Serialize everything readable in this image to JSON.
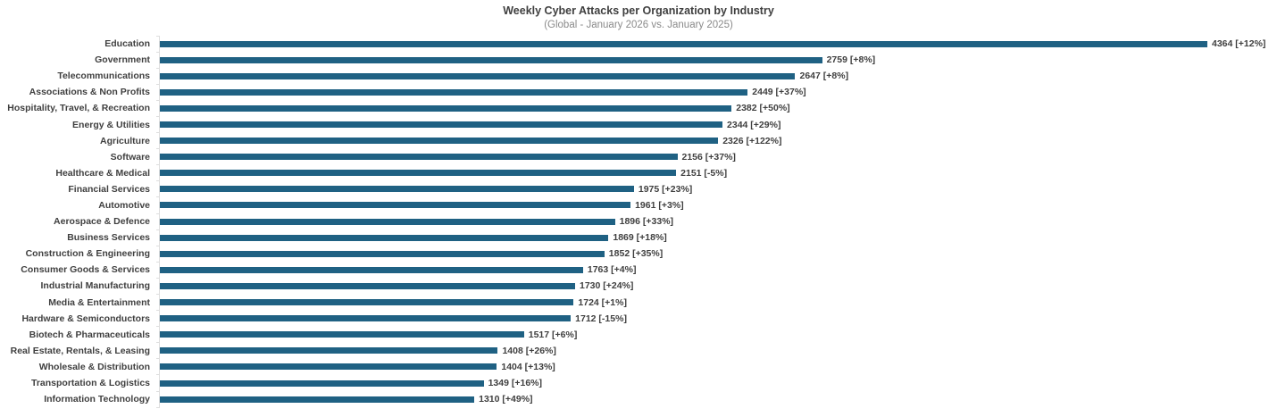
{
  "chart_data": {
    "type": "bar",
    "orientation": "horizontal",
    "title": "Weekly Cyber Attacks per Organization by Industry",
    "subtitle": "(Global - January 2026 vs. January 2025)",
    "bar_color": "#1f6183",
    "label_color": "#3f3f3f",
    "xlim": [
      0,
      4364
    ],
    "grid": false,
    "legend": false,
    "value_label_format": "value [change]",
    "categories": [
      "Education",
      "Government",
      "Telecommunications",
      "Associations & Non Profits",
      "Hospitality, Travel, & Recreation",
      "Energy & Utilities",
      "Agriculture",
      "Software",
      "Healthcare & Medical",
      "Financial Services",
      "Automotive",
      "Aerospace & Defence",
      "Business Services",
      "Construction & Engineering",
      "Consumer Goods & Services",
      "Industrial Manufacturing",
      "Media & Entertainment",
      "Hardware & Semiconductors",
      "Biotech & Pharmaceuticals",
      "Real Estate, Rentals, & Leasing",
      "Wholesale & Distribution",
      "Transportation & Logistics",
      "Information Technology"
    ],
    "values": [
      4364,
      2759,
      2647,
      2449,
      2382,
      2344,
      2326,
      2156,
      2151,
      1975,
      1961,
      1896,
      1869,
      1852,
      1763,
      1730,
      1724,
      1712,
      1517,
      1408,
      1404,
      1349,
      1310
    ],
    "changes": [
      "+12%",
      "+8%",
      "+8%",
      "+37%",
      "+50%",
      "+29%",
      "+122%",
      "+37%",
      "-5%",
      "+23%",
      "+3%",
      "+33%",
      "+18%",
      "+35%",
      "+4%",
      "+24%",
      "+1%",
      "-15%",
      "+6%",
      "+26%",
      "+13%",
      "+16%",
      "+49%"
    ]
  }
}
